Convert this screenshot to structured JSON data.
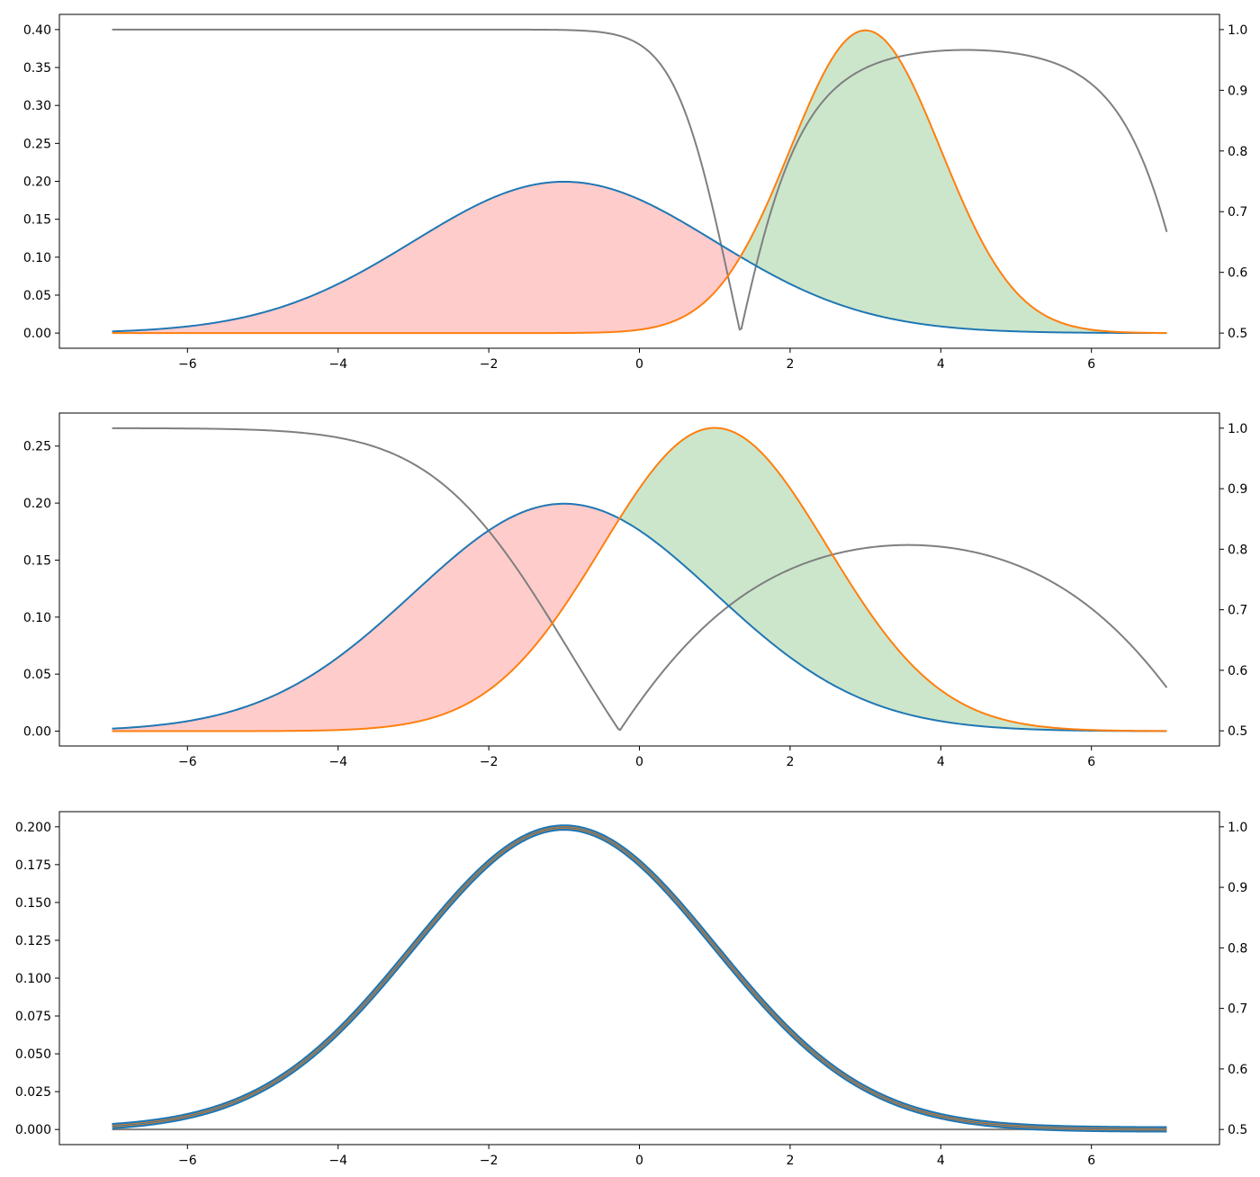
{
  "colors": {
    "blue": "#1f77b4",
    "orange": "#ff7f0e",
    "gray": "#7f7f7f",
    "fill_red": "#ffcccc",
    "fill_green": "#cce6cc"
  },
  "chart_data": [
    {
      "type": "line",
      "x_range": [
        -7,
        7
      ],
      "xlim": [
        -7.7,
        7.7
      ],
      "ylim": [
        -0.02,
        0.42
      ],
      "y2lim": [
        0.475,
        1.025
      ],
      "x_ticks": [
        -6,
        -4,
        -2,
        0,
        2,
        4,
        6
      ],
      "x_tick_labels": [
        "−6",
        "−4",
        "−2",
        "0",
        "2",
        "4",
        "6"
      ],
      "y_ticks": [
        0.0,
        0.05,
        0.1,
        0.15,
        0.2,
        0.25,
        0.3,
        0.35,
        0.4
      ],
      "y_tick_labels": [
        "0.00",
        "0.05",
        "0.10",
        "0.15",
        "0.20",
        "0.25",
        "0.30",
        "0.35",
        "0.40"
      ],
      "y2_ticks": [
        0.5,
        0.6,
        0.7,
        0.8,
        0.9,
        1.0
      ],
      "y2_tick_labels": [
        "0.5",
        "0.6",
        "0.7",
        "0.8",
        "0.9",
        "1.0"
      ],
      "series": [
        {
          "color": "blue",
          "distribution": "normal",
          "mean": -1,
          "sd": 2
        },
        {
          "color": "orange",
          "distribution": "normal",
          "mean": 3,
          "sd": 1
        },
        {
          "color": "gray",
          "axis": "right",
          "curve": "posterior max of the two densities"
        }
      ],
      "fill": "red where blue density is higher, green where orange density is higher"
    },
    {
      "type": "line",
      "x_range": [
        -7,
        7
      ],
      "xlim": [
        -7.7,
        7.7
      ],
      "ylim": [
        -0.013,
        0.279
      ],
      "y2lim": [
        0.475,
        1.025
      ],
      "x_ticks": [
        -6,
        -4,
        -2,
        0,
        2,
        4,
        6
      ],
      "x_tick_labels": [
        "−6",
        "−4",
        "−2",
        "0",
        "2",
        "4",
        "6"
      ],
      "y_ticks": [
        0.0,
        0.05,
        0.1,
        0.15,
        0.2,
        0.25
      ],
      "y_tick_labels": [
        "0.00",
        "0.05",
        "0.10",
        "0.15",
        "0.20",
        "0.25"
      ],
      "y2_ticks": [
        0.5,
        0.6,
        0.7,
        0.8,
        0.9,
        1.0
      ],
      "y2_tick_labels": [
        "0.5",
        "0.6",
        "0.7",
        "0.8",
        "0.9",
        "1.0"
      ],
      "series": [
        {
          "color": "blue",
          "distribution": "normal",
          "mean": -1,
          "sd": 2
        },
        {
          "color": "orange",
          "distribution": "normal",
          "mean": 1,
          "sd": 1.5
        },
        {
          "color": "gray",
          "axis": "right",
          "curve": "posterior max of the two densities"
        }
      ],
      "fill": "red where blue density is higher, green where orange density is higher"
    },
    {
      "type": "line",
      "x_range": [
        -7,
        7
      ],
      "xlim": [
        -7.7,
        7.7
      ],
      "ylim": [
        -0.01,
        0.21
      ],
      "y2lim": [
        0.475,
        1.025
      ],
      "x_ticks": [
        -6,
        -4,
        -2,
        0,
        2,
        4,
        6
      ],
      "x_tick_labels": [
        "−6",
        "−4",
        "−2",
        "0",
        "2",
        "4",
        "6"
      ],
      "y_ticks": [
        0.0,
        0.025,
        0.05,
        0.075,
        0.1,
        0.125,
        0.15,
        0.175,
        0.2
      ],
      "y_tick_labels": [
        "0.000",
        "0.025",
        "0.050",
        "0.075",
        "0.100",
        "0.125",
        "0.150",
        "0.175",
        "0.200"
      ],
      "y2_ticks": [
        0.5,
        0.6,
        0.7,
        0.8,
        0.9,
        1.0
      ],
      "y2_tick_labels": [
        "0.5",
        "0.6",
        "0.7",
        "0.8",
        "0.9",
        "1.0"
      ],
      "series": [
        {
          "color": "blue",
          "distribution": "normal",
          "mean": -1,
          "sd": 2
        },
        {
          "color": "orange",
          "distribution": "normal",
          "mean": -1,
          "sd": 2
        },
        {
          "color": "gray",
          "axis": "right",
          "curve": "posterior max of the two densities"
        }
      ],
      "fill": "none visible (identical densities)"
    }
  ]
}
